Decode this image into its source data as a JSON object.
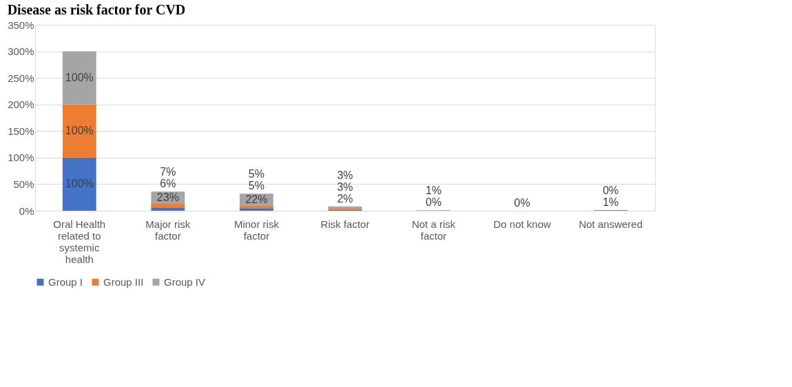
{
  "chart_data": {
    "type": "bar",
    "title": "Disease as risk factor for CVD",
    "categories": [
      "Oral Health related to systemic health",
      "Major risk factor",
      "Minor risk factor",
      "Risk factor",
      "Not a risk factor",
      "Do not know",
      "Not answered"
    ],
    "series": [
      {
        "name": "Group I",
        "color": "#4472c4",
        "values": [
          100,
          6,
          5,
          2,
          0,
          0,
          1
        ],
        "value_labels": [
          "100%",
          "6%",
          "5%",
          "2%",
          "0%",
          "0%",
          "1%"
        ]
      },
      {
        "name": "Group III",
        "color": "#ed7d31",
        "values": [
          100,
          7,
          5,
          3,
          0,
          0,
          0
        ],
        "value_labels": [
          "100%",
          "7%",
          "5%",
          "3%",
          null,
          null,
          "0%"
        ]
      },
      {
        "name": "Group IV",
        "color": "#a5a5a5",
        "values": [
          100,
          23,
          22,
          3,
          1,
          0,
          0
        ],
        "value_labels": [
          "100%",
          "23%",
          "22%",
          "3%",
          "1%",
          null,
          null
        ]
      }
    ],
    "stacked": true,
    "ylim": [
      0,
      350
    ],
    "yticks": [
      {
        "value": 0,
        "label": "0%"
      },
      {
        "value": 50,
        "label": "50%"
      },
      {
        "value": 100,
        "label": "100%"
      },
      {
        "value": 150,
        "label": "150%"
      },
      {
        "value": 200,
        "label": "200%"
      },
      {
        "value": 250,
        "label": "250%"
      },
      {
        "value": 300,
        "label": "300%"
      },
      {
        "value": 350,
        "label": "350%"
      }
    ],
    "grid": "y",
    "legend": "bottom"
  }
}
